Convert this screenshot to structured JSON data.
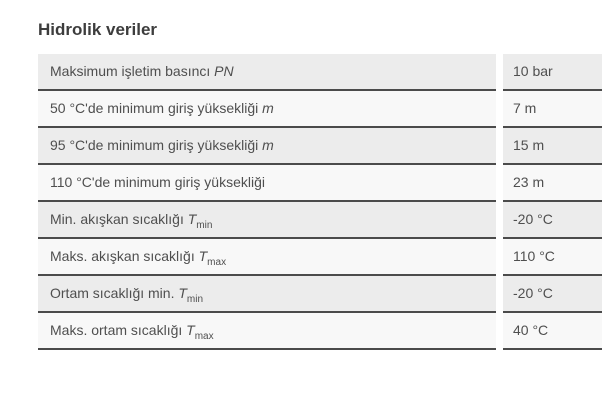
{
  "page": {
    "title": "Hidrolik veriler"
  },
  "table": {
    "rows": [
      {
        "label": "Maksimum işletim basıncı ",
        "symbol": "PN",
        "sub": "",
        "value": "10 bar"
      },
      {
        "label": "50 °C'de minimum giriş yüksekliği ",
        "symbol": "m",
        "sub": "",
        "value": "7 m"
      },
      {
        "label": "95 °C'de minimum giriş yüksekliği ",
        "symbol": "m",
        "sub": "",
        "value": "15 m"
      },
      {
        "label": "110 °C'de minimum giriş yüksekliği",
        "symbol": "",
        "sub": "",
        "value": "23 m"
      },
      {
        "label": "Min. akışkan sıcaklığı ",
        "symbol": "T",
        "sub": "min",
        "value": "-20 °C"
      },
      {
        "label": "Maks. akışkan sıcaklığı ",
        "symbol": "T",
        "sub": "max",
        "value": "110 °C"
      },
      {
        "label": "Ortam sıcaklığı min. ",
        "symbol": "T",
        "sub": "min",
        "value": "-20 °C"
      },
      {
        "label": "Maks. ortam sıcaklığı ",
        "symbol": "T",
        "sub": "max",
        "value": "40 °C"
      }
    ]
  },
  "colors": {
    "row_odd_bg": "#ececec",
    "row_even_bg": "#f8f8f8",
    "row_border": "#4b4b4b",
    "title_color": "#3d3d3d",
    "text_color": "#4f4f4f",
    "page_bg": "#ffffff"
  }
}
